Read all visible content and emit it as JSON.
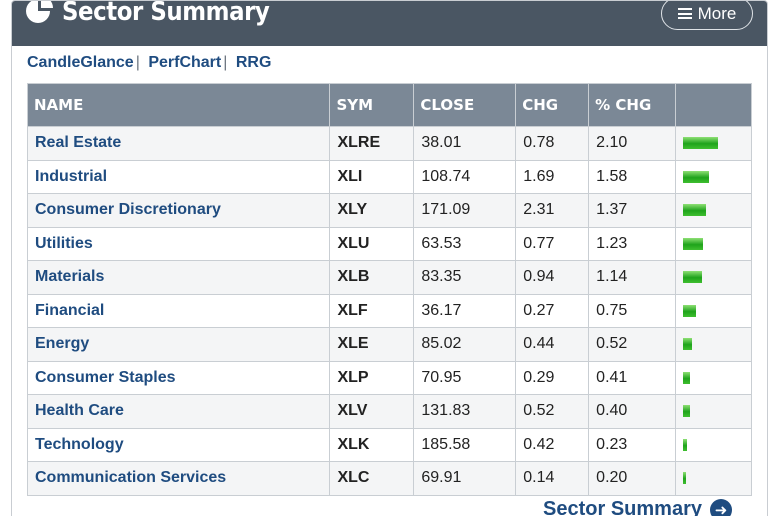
{
  "header": {
    "title": "Sector Summary",
    "more_label": "More"
  },
  "links": [
    "CandleGlance",
    "PerfChart",
    "RRG"
  ],
  "link_separator": "|",
  "table": {
    "columns": [
      "NAME",
      "SYM",
      "CLOSE",
      "CHG",
      "% CHG",
      ""
    ],
    "rows": [
      {
        "name": "Real Estate",
        "sym": "XLRE",
        "close": "38.01",
        "chg": "0.78",
        "pct": "2.10"
      },
      {
        "name": "Industrial",
        "sym": "XLI",
        "close": "108.74",
        "chg": "1.69",
        "pct": "1.58"
      },
      {
        "name": "Consumer Discretionary",
        "sym": "XLY",
        "close": "171.09",
        "chg": "2.31",
        "pct": "1.37"
      },
      {
        "name": "Utilities",
        "sym": "XLU",
        "close": "63.53",
        "chg": "0.77",
        "pct": "1.23"
      },
      {
        "name": "Materials",
        "sym": "XLB",
        "close": "83.35",
        "chg": "0.94",
        "pct": "1.14"
      },
      {
        "name": "Financial",
        "sym": "XLF",
        "close": "36.17",
        "chg": "0.27",
        "pct": "0.75"
      },
      {
        "name": "Energy",
        "sym": "XLE",
        "close": "85.02",
        "chg": "0.44",
        "pct": "0.52"
      },
      {
        "name": "Consumer Staples",
        "sym": "XLP",
        "close": "70.95",
        "chg": "0.29",
        "pct": "0.41"
      },
      {
        "name": "Health Care",
        "sym": "XLV",
        "close": "131.83",
        "chg": "0.52",
        "pct": "0.40"
      },
      {
        "name": "Technology",
        "sym": "XLK",
        "close": "185.58",
        "chg": "0.42",
        "pct": "0.23"
      },
      {
        "name": "Communication Services",
        "sym": "XLC",
        "close": "69.91",
        "chg": "0.14",
        "pct": "0.20"
      }
    ]
  },
  "footer": {
    "link_label": "Sector Summary"
  },
  "colors": {
    "header_bg": "#4a5663",
    "table_header_bg": "#7b8896",
    "link": "#1f4c80",
    "bar_green": "#2fb025"
  },
  "icons": {
    "title": "pie-chart-icon",
    "more": "hamburger-icon",
    "footer": "arrow-right-circle-icon"
  }
}
